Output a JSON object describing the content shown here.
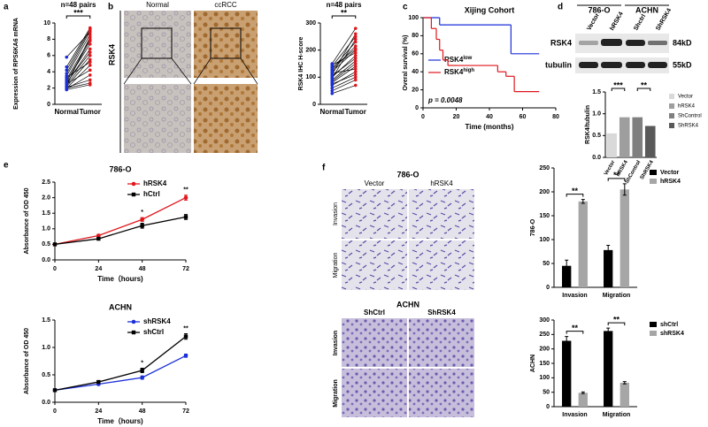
{
  "panel_labels": [
    "a",
    "b",
    "c",
    "d",
    "e",
    "f"
  ],
  "ihc": {
    "columns": [
      "Normal",
      "ccRCC"
    ],
    "row": "RSK4"
  },
  "blot": {
    "cell_lines": [
      "786-O",
      "ACHN"
    ],
    "lanes": [
      "Vector",
      "hRSK4",
      "Shctrl",
      "ShRSK4"
    ],
    "proteins": [
      "RSK4",
      "tubulin"
    ],
    "sizes": [
      "84kD",
      "55kD"
    ]
  },
  "transwell": [
    {
      "title": "786-O",
      "columns": [
        "Vector",
        "hRSK4"
      ],
      "rows": [
        "Invasion",
        "Migration"
      ]
    },
    {
      "title": "ACHN",
      "columns": [
        "ShCtrl",
        "ShRSK4"
      ],
      "rows": [
        "Invasion",
        "Migration"
      ]
    }
  ],
  "chart_data": [
    {
      "type": "paired",
      "annotation": "n=48 pairs",
      "significance": [
        "***"
      ],
      "ylabel": "Expression of RPS6KA6 mRNA",
      "categories": [
        "Normal",
        "Tumor"
      ],
      "colors": [
        "#1a2fd8",
        "#e0161b"
      ],
      "ylim": [
        0,
        10
      ],
      "yticks": [
        0,
        2,
        4,
        6,
        8,
        10
      ],
      "values": [
        [
          5.8,
          8.9
        ],
        [
          4.2,
          9.2
        ],
        [
          3.5,
          8.6
        ],
        [
          3.1,
          8.0
        ],
        [
          2.9,
          7.4
        ],
        [
          2.6,
          6.8
        ],
        [
          3.8,
          9.0
        ],
        [
          2.4,
          6.0
        ],
        [
          2.2,
          5.5
        ],
        [
          2.0,
          4.8
        ],
        [
          2.5,
          4.2
        ],
        [
          1.9,
          3.6
        ],
        [
          2.1,
          3.0
        ],
        [
          2.8,
          7.8
        ],
        [
          2.3,
          8.3
        ],
        [
          1.8,
          2.4
        ],
        [
          3.3,
          5.2
        ],
        [
          2.7,
          6.4
        ],
        [
          4.6,
          9.4
        ],
        [
          2.0,
          2.6
        ]
      ]
    },
    {
      "type": "paired",
      "annotation": "n=48 pairs",
      "significance": [
        "**"
      ],
      "ylabel": "RSK4 IHC H-score",
      "categories": [
        "Normal",
        "Tumor"
      ],
      "colors": [
        "#1a2fd8",
        "#e0161b"
      ],
      "ylim": [
        0,
        300
      ],
      "yticks": [
        0,
        100,
        200,
        300
      ],
      "values": [
        [
          150,
          280
        ],
        [
          140,
          250
        ],
        [
          130,
          230
        ],
        [
          120,
          200
        ],
        [
          110,
          260
        ],
        [
          100,
          180
        ],
        [
          90,
          160
        ],
        [
          80,
          140
        ],
        [
          70,
          120
        ],
        [
          60,
          100
        ],
        [
          50,
          90
        ],
        [
          40,
          70
        ],
        [
          145,
          190
        ],
        [
          125,
          215
        ],
        [
          105,
          170
        ],
        [
          85,
          150
        ],
        [
          95,
          240
        ],
        [
          135,
          205
        ],
        [
          115,
          130
        ],
        [
          75,
          110
        ]
      ]
    },
    {
      "type": "survival",
      "title": "Xijing Cohort",
      "xlabel": "Time (months)",
      "ylabel": "Overal survival (%)",
      "annotation": "p = 0.0048",
      "xlim": [
        0,
        80
      ],
      "xticks": [
        0,
        20,
        40,
        60,
        80
      ],
      "ylim": [
        0,
        100
      ],
      "yticks": [
        0,
        20,
        40,
        60,
        80,
        100
      ],
      "series": [
        {
          "name": "RSK4",
          "name_sup": "low",
          "color": "#1a2fd8",
          "x": [
            0,
            10,
            53,
            70
          ],
          "values": [
            100,
            92,
            60,
            60
          ]
        },
        {
          "name": "RSK4",
          "name_sup": "high",
          "color": "#e0161b",
          "x": [
            0,
            5,
            8,
            10,
            12,
            15,
            20,
            45,
            50,
            55,
            70
          ],
          "values": [
            100,
            88,
            76,
            64,
            53,
            47,
            47,
            40,
            35,
            18,
            18
          ]
        }
      ]
    },
    {
      "type": "bar",
      "ylabel": "RSK4/tubulin",
      "categories": [
        "Vector",
        "hRSK4",
        "ShControl",
        "ShRSK4"
      ],
      "colors": [
        "#d9d9d9",
        "#9e9e9e",
        "#7f7f7f",
        "#595959"
      ],
      "values": [
        0.55,
        0.92,
        0.92,
        0.72
      ],
      "ylim": [
        0,
        1.5
      ],
      "yticks": [
        {
          "value": 0,
          "label": "0.0"
        },
        {
          "value": 0.5,
          "label": "0.5"
        },
        {
          "value": 1,
          "label": "1.0"
        },
        {
          "value": 1.5,
          "label": "1.5"
        }
      ],
      "significance": [
        "***",
        "**"
      ]
    },
    {
      "type": "line",
      "title": "786-O",
      "xlabel": "Time（hours)",
      "ylabel": "Absorbance of OD 450",
      "x": [
        0,
        24,
        48,
        72
      ],
      "xlim": [
        0,
        72
      ],
      "xticks": [
        0,
        24,
        48,
        72
      ],
      "ylim": [
        0,
        2.5
      ],
      "yticks": [
        {
          "value": 0,
          "label": "0.0"
        },
        {
          "value": 0.5,
          "label": "0.5"
        },
        {
          "value": 1,
          "label": "1.0"
        },
        {
          "value": 1.5,
          "label": "1.5"
        },
        {
          "value": 2,
          "label": "2.0"
        },
        {
          "value": 2.5,
          "label": "2.5"
        }
      ],
      "series": [
        {
          "name": "hRSK4",
          "color": "#e0161b",
          "values": [
            0.5,
            0.78,
            1.3,
            2.0
          ],
          "errors": [
            0.02,
            0.04,
            0.06,
            0.08
          ]
        },
        {
          "name": "hCtrl",
          "color": "#000000",
          "values": [
            0.5,
            0.68,
            1.1,
            1.38
          ],
          "errors": [
            0.02,
            0.04,
            0.08,
            0.08
          ]
        }
      ],
      "significance": [
        "*",
        "**"
      ]
    },
    {
      "type": "line",
      "title": "ACHN",
      "xlabel": "Time（hours)",
      "ylabel": "Absorbance of OD 450",
      "x": [
        0,
        24,
        48,
        72
      ],
      "xlim": [
        0,
        72
      ],
      "xticks": [
        0,
        24,
        48,
        72
      ],
      "ylim": [
        0,
        1.5
      ],
      "yticks": [
        {
          "value": 0,
          "label": "0.0"
        },
        {
          "value": 0.5,
          "label": "0.5"
        },
        {
          "value": 1,
          "label": "1.0"
        },
        {
          "value": 1.5,
          "label": "1.5"
        }
      ],
      "series": [
        {
          "name": "shRSK4",
          "color": "#1a2fd8",
          "values": [
            0.22,
            0.33,
            0.45,
            0.85
          ],
          "errors": [
            0.01,
            0.02,
            0.03,
            0.03
          ]
        },
        {
          "name": "shCtrl",
          "color": "#000000",
          "values": [
            0.22,
            0.37,
            0.58,
            1.2
          ],
          "errors": [
            0.01,
            0.02,
            0.04,
            0.05
          ]
        }
      ],
      "significance": [
        "*",
        "**"
      ]
    },
    {
      "type": "grouped_bar",
      "ylabel": "786-O",
      "categories": [
        "Invasion",
        "Migration"
      ],
      "ylim": [
        0,
        250
      ],
      "yticks": [
        0,
        50,
        100,
        150,
        200,
        250
      ],
      "series": [
        {
          "name": "Vector",
          "color": "#000000",
          "values": [
            45,
            78
          ],
          "errors": [
            12,
            10
          ]
        },
        {
          "name": "hRSK4",
          "color": "#a6a6a6",
          "values": [
            180,
            205
          ],
          "errors": [
            4,
            12
          ]
        }
      ],
      "significance": [
        "**",
        "**"
      ]
    },
    {
      "type": "grouped_bar",
      "ylabel": "ACHN",
      "categories": [
        "Invasion",
        "Migration"
      ],
      "ylim": [
        0,
        300
      ],
      "yticks": [
        0,
        50,
        100,
        150,
        200,
        250,
        300
      ],
      "series": [
        {
          "name": "shCtrl",
          "color": "#000000",
          "values": [
            228,
            262
          ],
          "errors": [
            15,
            10
          ]
        },
        {
          "name": "shRSK4",
          "color": "#a6a6a6",
          "values": [
            48,
            83
          ],
          "errors": [
            3,
            4
          ]
        }
      ],
      "significance": [
        "**",
        "**"
      ]
    }
  ]
}
